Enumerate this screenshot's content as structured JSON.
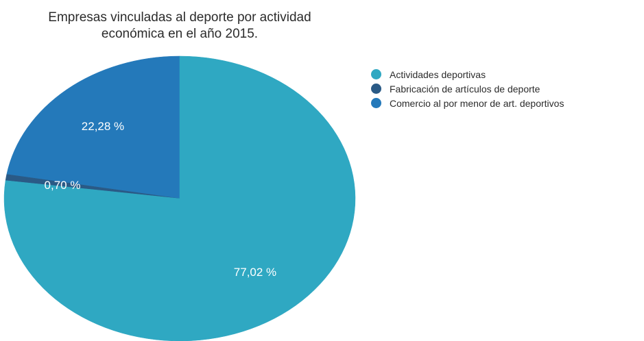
{
  "chart_data": {
    "type": "pie",
    "title_lines": [
      "Empresas vinculadas al deporte por actividad",
      "económica en el año 2015."
    ],
    "slices": [
      {
        "label": "Actividades deportivas",
        "value": 77.02,
        "value_label": "77,02 %",
        "color": "#2fa8c2"
      },
      {
        "label": "Fabricación de artículos de deporte",
        "value": 0.7,
        "value_label": "0,70 %",
        "color": "#2a5a86"
      },
      {
        "label": "Comercio al por menor de art. deportivos",
        "value": 22.28,
        "value_label": "22,28 %",
        "color": "#2479ba"
      }
    ],
    "legend_position": "top-right",
    "start": "12 o'clock",
    "direction": "clockwise"
  }
}
